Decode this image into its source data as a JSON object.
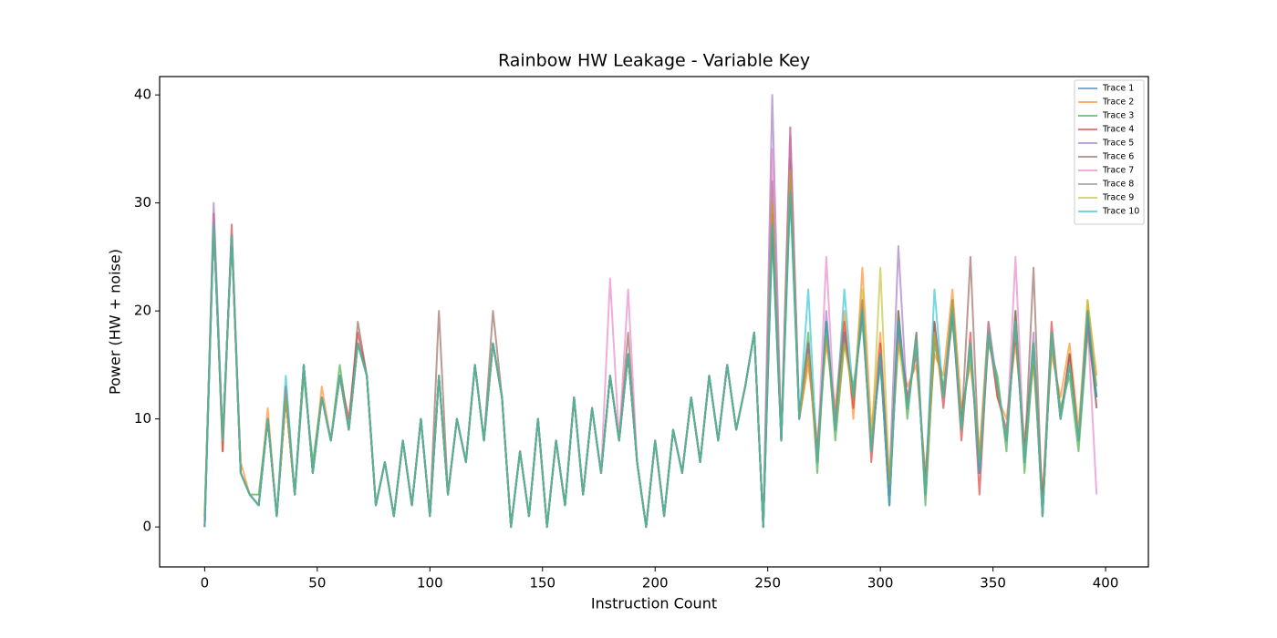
{
  "chart_data": {
    "type": "line",
    "title": "Rainbow HW Leakage - Variable Key",
    "x_label": "Instruction Count",
    "y_label": "Power (HW + noise)",
    "xlim": [
      -20,
      419
    ],
    "ylim": [
      -3.7,
      41.7
    ],
    "xticks": [
      0,
      50,
      100,
      150,
      200,
      250,
      300,
      350,
      400
    ],
    "yticks": [
      0,
      10,
      20,
      30,
      40
    ],
    "legend": "upper right",
    "x": [
      0,
      4,
      8,
      12,
      16,
      20,
      24,
      28,
      32,
      36,
      40,
      44,
      48,
      52,
      56,
      60,
      64,
      68,
      72,
      76,
      80,
      84,
      88,
      92,
      96,
      100,
      104,
      108,
      112,
      116,
      120,
      124,
      128,
      132,
      136,
      140,
      144,
      148,
      152,
      156,
      160,
      164,
      168,
      172,
      176,
      180,
      184,
      188,
      192,
      196,
      200,
      204,
      208,
      212,
      216,
      220,
      224,
      228,
      232,
      236,
      240,
      244,
      248,
      252,
      256,
      260,
      264,
      268,
      272,
      276,
      280,
      284,
      288,
      292,
      296,
      300,
      304,
      308,
      312,
      316,
      320,
      324,
      328,
      332,
      336,
      340,
      344,
      348,
      352,
      356,
      360,
      364,
      368,
      372,
      376,
      380,
      384,
      388,
      392,
      396
    ],
    "series": [
      {
        "name": "Trace 1",
        "color": "#1f77b4",
        "values": [
          0,
          28,
          8,
          27,
          5,
          3,
          2,
          10,
          1,
          12,
          3,
          15,
          5,
          12,
          8,
          14,
          9,
          17,
          14,
          2,
          6,
          1,
          8,
          2,
          10,
          1,
          14,
          3,
          10,
          6,
          15,
          8,
          17,
          12,
          0,
          7,
          1,
          10,
          0,
          8,
          2,
          12,
          3,
          11,
          5,
          14,
          8,
          16,
          6,
          0,
          8,
          1,
          9,
          5,
          12,
          6,
          14,
          8,
          15,
          9,
          13,
          18,
          0,
          28,
          8,
          32,
          10,
          17,
          6,
          19,
          9,
          18,
          12,
          20,
          7,
          16,
          2,
          19,
          11,
          17,
          3,
          18,
          12,
          20,
          9,
          17,
          5,
          18,
          13,
          8,
          19,
          6,
          17,
          1,
          18,
          10,
          15,
          8,
          19,
          12
        ]
      },
      {
        "name": "Trace 2",
        "color": "#ff7f0e",
        "values": [
          0.5,
          29,
          7,
          27,
          6,
          3,
          2,
          11,
          1,
          12,
          3,
          15,
          5,
          13,
          8,
          14,
          9,
          17,
          14,
          2,
          6,
          1,
          8,
          2,
          10,
          1,
          14,
          3,
          10,
          6,
          15,
          8,
          17,
          12,
          0,
          7,
          1,
          10,
          0,
          8,
          2,
          12,
          3,
          11,
          5,
          14,
          8,
          16,
          6,
          0,
          8,
          1,
          9,
          5,
          12,
          6,
          14,
          8,
          15,
          9,
          13,
          18,
          0,
          30,
          8,
          33,
          10,
          15,
          8,
          17,
          11,
          20,
          10,
          24,
          9,
          18,
          4,
          17,
          13,
          15,
          5,
          16,
          14,
          22,
          11,
          15,
          7,
          19,
          12,
          10,
          17,
          8,
          15,
          3,
          16,
          12,
          17,
          9,
          21,
          14
        ]
      },
      {
        "name": "Trace 3",
        "color": "#2ca02c",
        "values": [
          1,
          28,
          8,
          27,
          5,
          3,
          3,
          10,
          1,
          12,
          3,
          14,
          6,
          12,
          8,
          15,
          9,
          17,
          14,
          2,
          6,
          1,
          8,
          2,
          10,
          1,
          14,
          3,
          10,
          6,
          15,
          8,
          17,
          12,
          0,
          7,
          1,
          10,
          0,
          8,
          2,
          12,
          3,
          11,
          5,
          14,
          8,
          16,
          6,
          0,
          8,
          1,
          9,
          5,
          12,
          6,
          14,
          8,
          15,
          9,
          13,
          18,
          0,
          27,
          8,
          31,
          10,
          18,
          5,
          19,
          8,
          17,
          13,
          19,
          8,
          15,
          3,
          20,
          10,
          18,
          2,
          17,
          13,
          19,
          10,
          16,
          6,
          17,
          14,
          7,
          20,
          5,
          16,
          2,
          17,
          11,
          14,
          7,
          18,
          12
        ]
      },
      {
        "name": "Trace 4",
        "color": "#d62728",
        "values": [
          0,
          29,
          7,
          28,
          5,
          3,
          2,
          10,
          1,
          13,
          3,
          15,
          5,
          12,
          8,
          14,
          10,
          18,
          14,
          2,
          6,
          1,
          8,
          2,
          10,
          1,
          14,
          3,
          10,
          6,
          15,
          8,
          17,
          12,
          0,
          7,
          1,
          10,
          0,
          8,
          2,
          12,
          3,
          11,
          5,
          14,
          8,
          16,
          6,
          0,
          8,
          1,
          9,
          5,
          12,
          6,
          14,
          8,
          15,
          9,
          13,
          18,
          0,
          29,
          8,
          34,
          10,
          16,
          7,
          18,
          10,
          19,
          11,
          21,
          6,
          17,
          3,
          18,
          12,
          16,
          4,
          19,
          11,
          20,
          8,
          18,
          3,
          18,
          12,
          9,
          18,
          7,
          17,
          2,
          19,
          10,
          16,
          8,
          20,
          11
        ]
      },
      {
        "name": "Trace 5",
        "color": "#9467bd",
        "values": [
          0,
          30,
          8,
          27,
          5,
          3,
          2,
          10,
          1,
          12,
          3,
          15,
          5,
          12,
          8,
          14,
          9,
          17,
          14,
          2,
          6,
          1,
          8,
          2,
          10,
          1,
          14,
          3,
          10,
          6,
          15,
          8,
          17,
          12,
          0,
          7,
          1,
          10,
          0,
          8,
          2,
          12,
          3,
          11,
          5,
          14,
          8,
          16,
          6,
          0,
          8,
          1,
          9,
          5,
          12,
          6,
          14,
          8,
          15,
          9,
          13,
          18,
          0,
          40,
          8,
          36,
          10,
          17,
          6,
          20,
          9,
          18,
          12,
          21,
          7,
          16,
          4,
          26,
          11,
          17,
          3,
          18,
          12,
          21,
          9,
          17,
          5,
          19,
          13,
          8,
          19,
          6,
          18,
          1,
          18,
          10,
          15,
          8,
          19,
          13
        ]
      },
      {
        "name": "Trace 6",
        "color": "#8c564b",
        "values": [
          1,
          28,
          8,
          27,
          5,
          3,
          2,
          10,
          1,
          12,
          3,
          15,
          5,
          12,
          8,
          14,
          9,
          19,
          14,
          2,
          6,
          1,
          8,
          2,
          10,
          1,
          20,
          3,
          10,
          6,
          15,
          8,
          20,
          12,
          0,
          7,
          1,
          10,
          0,
          8,
          2,
          12,
          3,
          11,
          5,
          14,
          8,
          18,
          6,
          0,
          8,
          1,
          9,
          5,
          12,
          6,
          14,
          8,
          15,
          9,
          13,
          18,
          0,
          32,
          8,
          37,
          10,
          17,
          6,
          19,
          9,
          18,
          12,
          20,
          7,
          16,
          2,
          20,
          11,
          17,
          3,
          19,
          12,
          21,
          9,
          25,
          5,
          18,
          13,
          8,
          20,
          6,
          24,
          1,
          18,
          10,
          16,
          8,
          20,
          12
        ]
      },
      {
        "name": "Trace 7",
        "color": "#e377c2",
        "values": [
          0,
          29,
          8,
          27,
          5,
          3,
          2,
          10,
          1,
          12,
          3,
          15,
          5,
          12,
          8,
          14,
          9,
          17,
          14,
          2,
          6,
          1,
          8,
          2,
          10,
          1,
          14,
          3,
          10,
          6,
          15,
          8,
          17,
          12,
          0,
          7,
          1,
          10,
          0,
          8,
          2,
          12,
          3,
          11,
          5,
          23,
          8,
          22,
          6,
          0,
          8,
          1,
          9,
          5,
          12,
          6,
          14,
          8,
          15,
          9,
          13,
          18,
          0,
          35,
          8,
          37,
          10,
          17,
          6,
          25,
          9,
          18,
          12,
          20,
          7,
          16,
          2,
          19,
          11,
          17,
          3,
          18,
          12,
          20,
          9,
          17,
          5,
          18,
          13,
          8,
          25,
          6,
          17,
          1,
          18,
          10,
          15,
          8,
          19,
          3
        ]
      },
      {
        "name": "Trace 8",
        "color": "#7f7f7f",
        "values": [
          0,
          28,
          8,
          27,
          5,
          3,
          2,
          10,
          1,
          12,
          3,
          15,
          5,
          12,
          8,
          14,
          9,
          17,
          14,
          2,
          6,
          1,
          8,
          2,
          10,
          1,
          14,
          3,
          10,
          6,
          15,
          8,
          17,
          12,
          0,
          7,
          1,
          10,
          0,
          8,
          2,
          12,
          3,
          11,
          5,
          14,
          8,
          16,
          6,
          0,
          8,
          1,
          9,
          5,
          12,
          6,
          14,
          8,
          15,
          9,
          13,
          18,
          0,
          28,
          8,
          32,
          10,
          17,
          6,
          19,
          9,
          18,
          12,
          20,
          7,
          16,
          2,
          19,
          11,
          18,
          3,
          18,
          12,
          20,
          9,
          17,
          5,
          18,
          13,
          8,
          19,
          6,
          17,
          1,
          18,
          10,
          15,
          8,
          19,
          11
        ]
      },
      {
        "name": "Trace 9",
        "color": "#bcbd22",
        "values": [
          1,
          28,
          8,
          27,
          5,
          3,
          2,
          10,
          1,
          12,
          3,
          15,
          5,
          12,
          8,
          14,
          9,
          17,
          14,
          2,
          6,
          1,
          8,
          2,
          10,
          1,
          14,
          3,
          10,
          6,
          15,
          8,
          17,
          12,
          0,
          7,
          1,
          10,
          0,
          8,
          2,
          12,
          3,
          11,
          5,
          14,
          8,
          16,
          6,
          0,
          8,
          1,
          9,
          5,
          12,
          6,
          14,
          8,
          15,
          9,
          13,
          18,
          0,
          30,
          8,
          33,
          10,
          16,
          6,
          18,
          9,
          17,
          12,
          22,
          7,
          24,
          4,
          17,
          11,
          17,
          3,
          18,
          12,
          21,
          9,
          17,
          6,
          18,
          13,
          8,
          19,
          6,
          17,
          1,
          18,
          10,
          15,
          8,
          21,
          13
        ]
      },
      {
        "name": "Trace 10",
        "color": "#17becf",
        "values": [
          0,
          28,
          8,
          27,
          5,
          3,
          2,
          10,
          1,
          14,
          3,
          15,
          5,
          12,
          8,
          14,
          9,
          17,
          14,
          2,
          6,
          1,
          8,
          2,
          10,
          1,
          14,
          3,
          10,
          6,
          15,
          8,
          17,
          12,
          0,
          7,
          1,
          10,
          0,
          8,
          2,
          12,
          3,
          11,
          5,
          14,
          8,
          16,
          6,
          0,
          8,
          1,
          9,
          5,
          12,
          6,
          14,
          8,
          15,
          9,
          13,
          18,
          0,
          28,
          8,
          31,
          10,
          22,
          6,
          19,
          9,
          22,
          12,
          20,
          7,
          16,
          2,
          19,
          11,
          17,
          3,
          22,
          12,
          20,
          9,
          17,
          5,
          18,
          13,
          8,
          19,
          6,
          17,
          1,
          18,
          10,
          15,
          8,
          20,
          12
        ]
      }
    ]
  }
}
